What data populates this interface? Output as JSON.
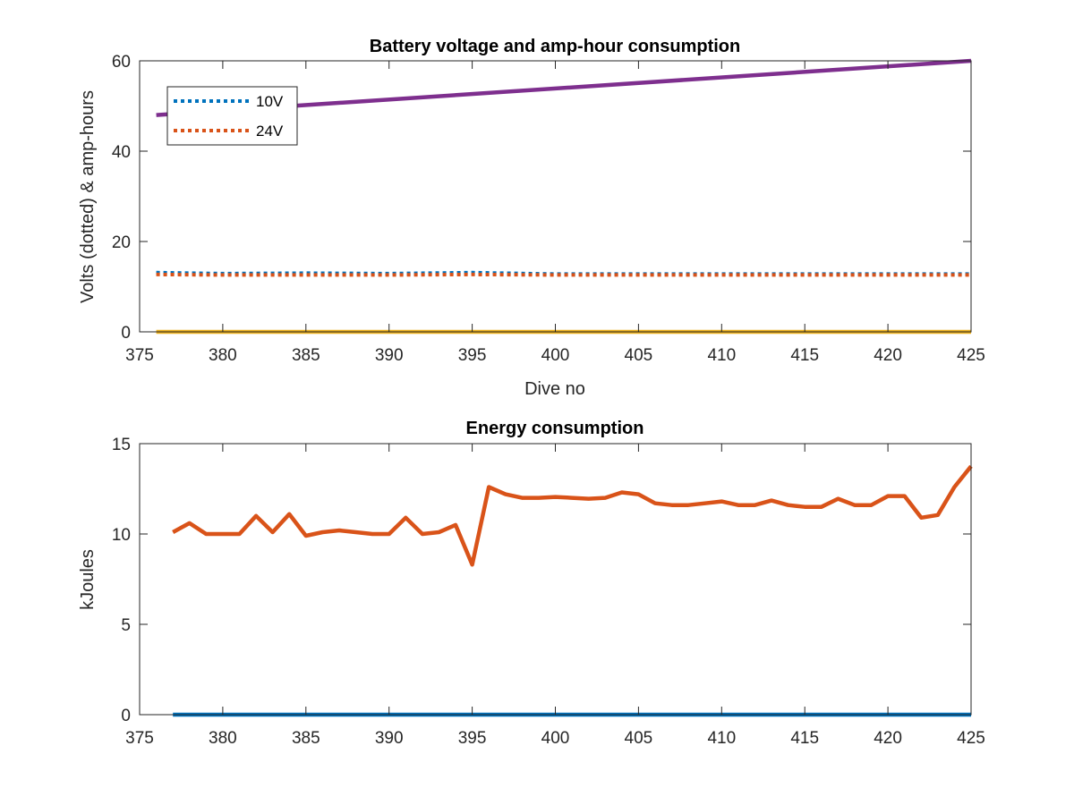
{
  "chart_data": [
    {
      "type": "line",
      "title": "Battery voltage and amp-hour consumption",
      "xlabel": "Dive no",
      "ylabel": "Volts (dotted) & amp-hours",
      "xlim": [
        375,
        425
      ],
      "ylim": [
        0,
        60
      ],
      "xticks": [
        375,
        380,
        385,
        390,
        395,
        400,
        405,
        410,
        415,
        420,
        425
      ],
      "yticks": [
        0,
        20,
        40,
        60
      ],
      "grid": false,
      "legend": "top-left",
      "series": [
        {
          "name": "10V",
          "style": "dotted",
          "color": "#0072BD",
          "x": [
            376,
            380,
            385,
            390,
            395,
            400,
            405,
            410,
            415,
            420,
            425
          ],
          "y": [
            13.1,
            12.9,
            13.0,
            12.9,
            13.1,
            12.8,
            12.8,
            12.8,
            12.8,
            12.8,
            12.8
          ]
        },
        {
          "name": "24V",
          "style": "dotted",
          "color": "#D95319",
          "x": [
            376,
            380,
            385,
            390,
            395,
            400,
            405,
            410,
            415,
            420,
            425
          ],
          "y": [
            12.7,
            12.6,
            12.6,
            12.6,
            12.7,
            12.6,
            12.6,
            12.6,
            12.6,
            12.6,
            12.6
          ]
        },
        {
          "style": "solid",
          "color": "#EDB120",
          "x": [
            376,
            425
          ],
          "y": [
            0,
            0
          ]
        },
        {
          "style": "solid",
          "color": "#7E2F8E",
          "x": [
            376,
            425
          ],
          "y": [
            48,
            60
          ]
        }
      ]
    },
    {
      "type": "line",
      "title": "Energy consumption",
      "xlabel": "",
      "ylabel": "kJoules",
      "xlim": [
        375,
        425
      ],
      "ylim": [
        0,
        15
      ],
      "xticks": [
        375,
        380,
        385,
        390,
        395,
        400,
        405,
        410,
        415,
        420,
        425
      ],
      "yticks": [
        0,
        5,
        10,
        15
      ],
      "grid": false,
      "series": [
        {
          "style": "solid",
          "color": "#0072BD",
          "x": [
            377,
            425
          ],
          "y": [
            0,
            0
          ]
        },
        {
          "style": "solid",
          "color": "#D95319",
          "x": [
            377,
            378,
            379,
            380,
            381,
            382,
            383,
            384,
            385,
            386,
            387,
            388,
            389,
            390,
            391,
            392,
            393,
            394,
            395,
            396,
            397,
            398,
            399,
            400,
            401,
            402,
            403,
            404,
            405,
            406,
            407,
            408,
            409,
            410,
            411,
            412,
            413,
            414,
            415,
            416,
            417,
            418,
            419,
            420,
            421,
            422,
            423,
            424,
            425
          ],
          "y": [
            10.1,
            10.6,
            10.0,
            10.0,
            10.0,
            11.0,
            10.1,
            11.1,
            9.9,
            10.1,
            10.2,
            10.1,
            10.0,
            10.0,
            10.9,
            10.0,
            10.1,
            10.5,
            8.3,
            12.6,
            12.2,
            12.0,
            12.0,
            12.05,
            12.0,
            11.95,
            12.0,
            12.3,
            12.2,
            11.7,
            11.6,
            11.6,
            11.7,
            11.8,
            11.6,
            11.6,
            11.85,
            11.6,
            11.5,
            11.5,
            11.95,
            11.6,
            11.6,
            12.1,
            12.1,
            10.9,
            11.05,
            12.6,
            13.75
          ]
        }
      ]
    }
  ]
}
